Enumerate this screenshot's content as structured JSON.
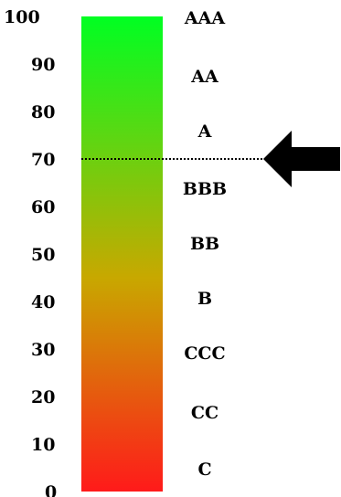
{
  "scale": {
    "ticks": [
      "100",
      "90",
      "80",
      "70",
      "60",
      "50",
      "40",
      "30",
      "20",
      "10",
      "0"
    ],
    "tick_values": [
      100,
      90,
      80,
      70,
      60,
      50,
      40,
      30,
      20,
      10,
      0
    ],
    "range": [
      0,
      100
    ]
  },
  "ratings": [
    "AAA",
    "AA",
    "A",
    "BBB",
    "BB",
    "B",
    "CCC",
    "CC",
    "C"
  ],
  "gradient": {
    "top_color": "#00ff22",
    "middle_color": "#c8a800",
    "bottom_color": "#ff1a1a"
  },
  "marker": {
    "value": 70,
    "color": "#000000"
  }
}
